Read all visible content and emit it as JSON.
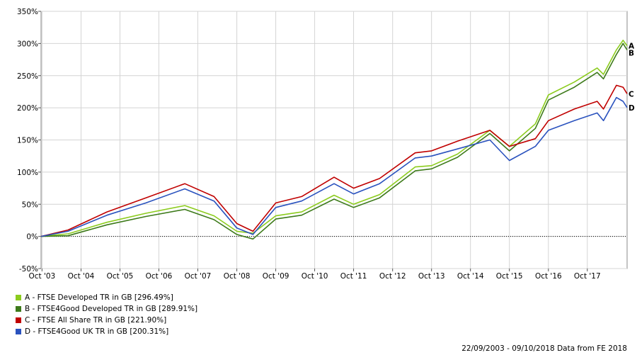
{
  "chart_data": {
    "type": "line",
    "title": "",
    "xlabel": "",
    "ylabel": "",
    "x_start": "2003-09-22",
    "x_end": "2018-10-09",
    "ylim": [
      -50,
      350
    ],
    "y_ticks": [
      -50,
      0,
      50,
      100,
      150,
      200,
      250,
      300,
      350
    ],
    "y_tick_labels": [
      "-50%",
      "0%",
      "50%",
      "100%",
      "150%",
      "200%",
      "250%",
      "300%",
      "350%"
    ],
    "x_ticks": [
      "2003-10-01",
      "2004-10-01",
      "2005-10-01",
      "2006-10-01",
      "2007-10-01",
      "2008-10-01",
      "2009-10-01",
      "2010-10-01",
      "2011-10-01",
      "2012-10-01",
      "2013-10-01",
      "2014-10-01",
      "2015-10-01",
      "2016-10-01",
      "2017-10-01"
    ],
    "x_tick_labels": [
      "Oct '03",
      "Oct '04",
      "Oct '05",
      "Oct '06",
      "Oct '07",
      "Oct '08",
      "Oct '09",
      "Oct '10",
      "Oct '11",
      "Oct '12",
      "Oct '13",
      "Oct '14",
      "Oct '15",
      "Oct '16",
      "Oct '17"
    ],
    "grid": true,
    "zero_line": "dotted",
    "legend_position": "bottom-left",
    "series": [
      {
        "name": "A - FTSE Developed TR in GB [296.49%]",
        "end_label": "A",
        "color": "#8ccc1e",
        "points": [
          [
            "2003-09-22",
            0
          ],
          [
            "2004-06-01",
            4
          ],
          [
            "2005-06-01",
            22
          ],
          [
            "2006-06-01",
            36
          ],
          [
            "2007-06-01",
            48
          ],
          [
            "2008-03-01",
            32
          ],
          [
            "2008-10-01",
            8
          ],
          [
            "2009-03-01",
            5
          ],
          [
            "2009-10-01",
            32
          ],
          [
            "2010-06-01",
            38
          ],
          [
            "2011-04-01",
            64
          ],
          [
            "2011-10-01",
            50
          ],
          [
            "2012-06-01",
            65
          ],
          [
            "2013-05-01",
            108
          ],
          [
            "2013-10-01",
            110
          ],
          [
            "2014-06-01",
            128
          ],
          [
            "2015-04-01",
            165
          ],
          [
            "2015-10-01",
            140
          ],
          [
            "2016-06-01",
            175
          ],
          [
            "2016-10-01",
            220
          ],
          [
            "2017-06-01",
            240
          ],
          [
            "2018-01-01",
            262
          ],
          [
            "2018-03-01",
            252
          ],
          [
            "2018-07-01",
            290
          ],
          [
            "2018-09-01",
            305
          ],
          [
            "2018-10-09",
            296.49
          ]
        ]
      },
      {
        "name": "B - FTSE4Good Developed TR in GB [289.91%]",
        "end_label": "B",
        "color": "#3d7a1a",
        "points": [
          [
            "2003-09-22",
            0
          ],
          [
            "2004-06-01",
            1
          ],
          [
            "2005-06-01",
            18
          ],
          [
            "2006-06-01",
            31
          ],
          [
            "2007-06-01",
            42
          ],
          [
            "2008-03-01",
            26
          ],
          [
            "2008-10-01",
            3
          ],
          [
            "2009-03-01",
            -4
          ],
          [
            "2009-10-01",
            27
          ],
          [
            "2010-06-01",
            33
          ],
          [
            "2011-04-01",
            58
          ],
          [
            "2011-10-01",
            45
          ],
          [
            "2012-06-01",
            60
          ],
          [
            "2013-05-01",
            102
          ],
          [
            "2013-10-01",
            105
          ],
          [
            "2014-06-01",
            123
          ],
          [
            "2015-04-01",
            160
          ],
          [
            "2015-10-01",
            133
          ],
          [
            "2016-06-01",
            168
          ],
          [
            "2016-10-01",
            212
          ],
          [
            "2017-06-01",
            232
          ],
          [
            "2018-01-01",
            255
          ],
          [
            "2018-03-01",
            245
          ],
          [
            "2018-07-01",
            283
          ],
          [
            "2018-09-01",
            300
          ],
          [
            "2018-10-09",
            289.91
          ]
        ]
      },
      {
        "name": "C - FTSE All Share TR in GB [221.90%]",
        "end_label": "C",
        "color": "#c00000",
        "points": [
          [
            "2003-09-22",
            0
          ],
          [
            "2004-06-01",
            10
          ],
          [
            "2005-06-01",
            38
          ],
          [
            "2006-06-01",
            60
          ],
          [
            "2007-06-01",
            82
          ],
          [
            "2008-03-01",
            62
          ],
          [
            "2008-10-01",
            20
          ],
          [
            "2009-03-01",
            8
          ],
          [
            "2009-10-01",
            52
          ],
          [
            "2010-06-01",
            62
          ],
          [
            "2011-04-01",
            92
          ],
          [
            "2011-10-01",
            75
          ],
          [
            "2012-06-01",
            90
          ],
          [
            "2013-05-01",
            130
          ],
          [
            "2013-10-01",
            133
          ],
          [
            "2014-06-01",
            148
          ],
          [
            "2015-04-01",
            165
          ],
          [
            "2015-10-01",
            140
          ],
          [
            "2016-06-01",
            152
          ],
          [
            "2016-10-01",
            180
          ],
          [
            "2017-06-01",
            198
          ],
          [
            "2018-01-01",
            210
          ],
          [
            "2018-03-01",
            198
          ],
          [
            "2018-07-01",
            235
          ],
          [
            "2018-09-01",
            232
          ],
          [
            "2018-10-09",
            221.9
          ]
        ]
      },
      {
        "name": "D - FTSE4Good UK TR in GB [200.31%]",
        "end_label": "D",
        "color": "#2a52be",
        "points": [
          [
            "2003-09-22",
            0
          ],
          [
            "2004-06-01",
            8
          ],
          [
            "2005-06-01",
            33
          ],
          [
            "2006-06-01",
            52
          ],
          [
            "2007-06-01",
            74
          ],
          [
            "2008-03-01",
            55
          ],
          [
            "2008-10-01",
            13
          ],
          [
            "2009-03-01",
            3
          ],
          [
            "2009-10-01",
            45
          ],
          [
            "2010-06-01",
            55
          ],
          [
            "2011-04-01",
            82
          ],
          [
            "2011-10-01",
            66
          ],
          [
            "2012-06-01",
            82
          ],
          [
            "2013-05-01",
            122
          ],
          [
            "2013-10-01",
            125
          ],
          [
            "2014-06-01",
            136
          ],
          [
            "2015-04-01",
            150
          ],
          [
            "2015-10-01",
            118
          ],
          [
            "2016-06-01",
            140
          ],
          [
            "2016-10-01",
            165
          ],
          [
            "2017-06-01",
            180
          ],
          [
            "2018-01-01",
            192
          ],
          [
            "2018-03-01",
            180
          ],
          [
            "2018-07-01",
            216
          ],
          [
            "2018-09-01",
            210
          ],
          [
            "2018-10-09",
            200.31
          ]
        ]
      }
    ],
    "footer": "22/09/2003 - 09/10/2018 Data from FE 2018"
  },
  "legend": {
    "items": [
      {
        "label": "A - FTSE Developed TR in GB [296.49%]",
        "color": "#8ccc1e"
      },
      {
        "label": "B - FTSE4Good Developed TR in GB [289.91%]",
        "color": "#3d7a1a"
      },
      {
        "label": "C - FTSE All Share TR in GB [221.90%]",
        "color": "#c00000"
      },
      {
        "label": "D - FTSE4Good UK TR in GB [200.31%]",
        "color": "#2a52be"
      }
    ]
  },
  "footer": "22/09/2003 - 09/10/2018 Data from FE 2018"
}
